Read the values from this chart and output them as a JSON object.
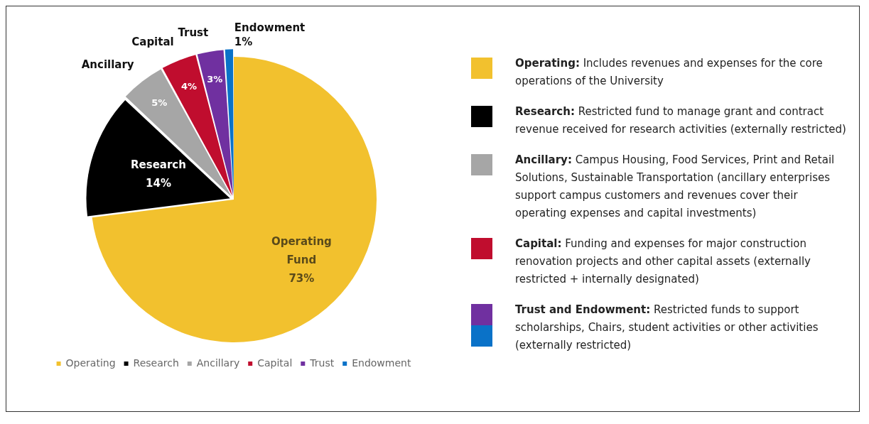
{
  "chart_data": {
    "type": "pie",
    "categories": [
      "Operating",
      "Research",
      "Ancillary",
      "Capital",
      "Trust",
      "Endowment"
    ],
    "values": [
      73,
      14,
      5,
      4,
      3,
      1
    ],
    "colors": [
      "#f2c12e",
      "#000000",
      "#a6a6a6",
      "#c00d2e",
      "#7030a0",
      "#0a72c8"
    ],
    "value_labels": [
      "Operating Fund 73%",
      "Research 14%",
      "Ancillary 5%",
      "Capital 4%",
      "Trust 3%",
      "Endowment 1%"
    ],
    "legend": "bottom",
    "annotations": [
      "Operating: Includes revenues and expenses for the core operations of the University",
      "Research: Restricted fund to manage grant and contract revenue received for research activities (externally restricted)",
      "Ancillary: Campus Housing, Food Services, Print and Retail Solutions, Sustainable Transportation (ancillary enterprises support campus customers and revenues cover their operating expenses and capital investments)",
      "Capital: Funding and expenses for major construction renovation projects and other capital assets (externally restricted + internally designated)",
      "Trust and Endowment: Restricted funds to support scholarships, Chairs, student activities or other activities (externally restricted)"
    ]
  }
}
